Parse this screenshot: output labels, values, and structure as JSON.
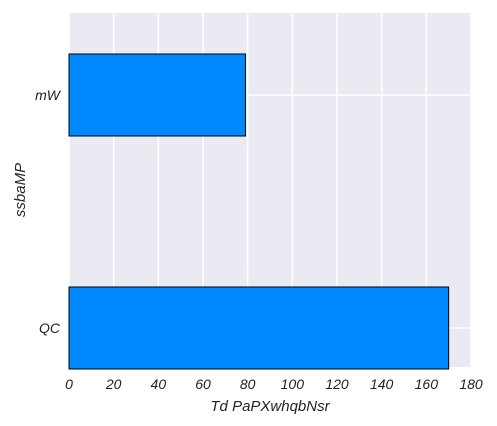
{
  "chart_data": {
    "type": "bar",
    "orientation": "horizontal",
    "title": "",
    "xlabel": "Td PaPXwhqbNsr",
    "ylabel": "ssbaMP",
    "categories": [
      "mW",
      "QC"
    ],
    "values": [
      79,
      170
    ],
    "xlim": [
      0,
      180
    ],
    "xticks": [
      0,
      20,
      40,
      60,
      80,
      100,
      120,
      140,
      160,
      180
    ],
    "grid": true,
    "legend": "none",
    "colors": {
      "bar": "#0088ff",
      "bar_edge": "#000000",
      "plot_background": "#eaeaf2",
      "grid": "#ffffff"
    }
  }
}
